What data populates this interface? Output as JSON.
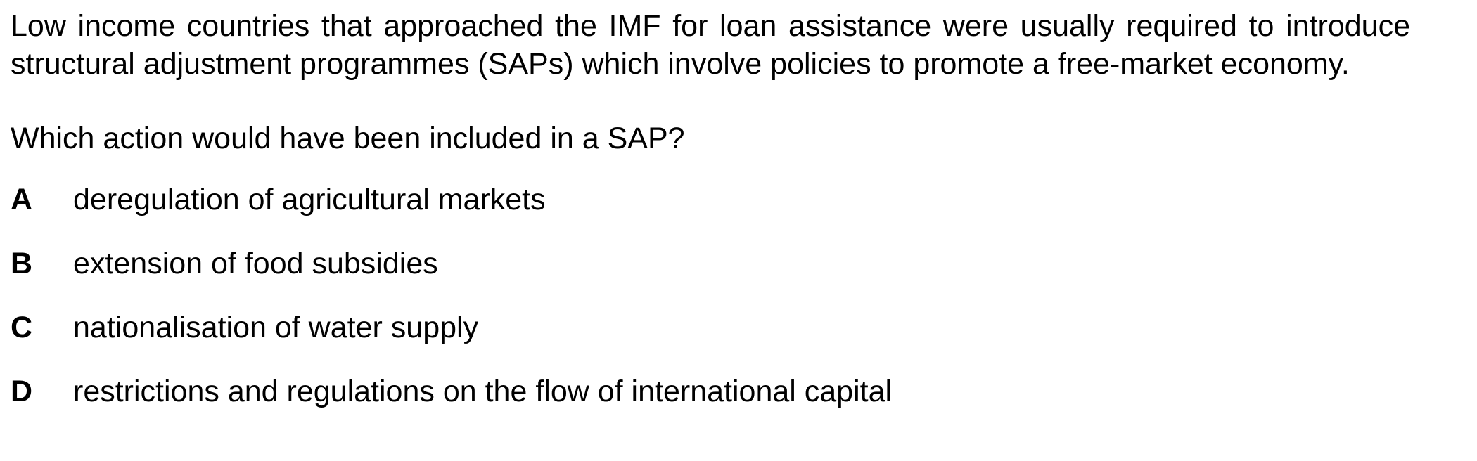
{
  "stem": "Low income countries that approached the IMF for loan assistance were usually required to introduce structural adjustment programmes (SAPs) which involve policies to promote a free-market economy.",
  "question": "Which action would have been included in a SAP?",
  "options": [
    {
      "letter": "A",
      "text": "deregulation of agricultural markets"
    },
    {
      "letter": "B",
      "text": "extension of food subsidies"
    },
    {
      "letter": "C",
      "text": "nationalisation of water supply"
    },
    {
      "letter": "D",
      "text": "restrictions and regulations on the flow of international capital"
    }
  ]
}
